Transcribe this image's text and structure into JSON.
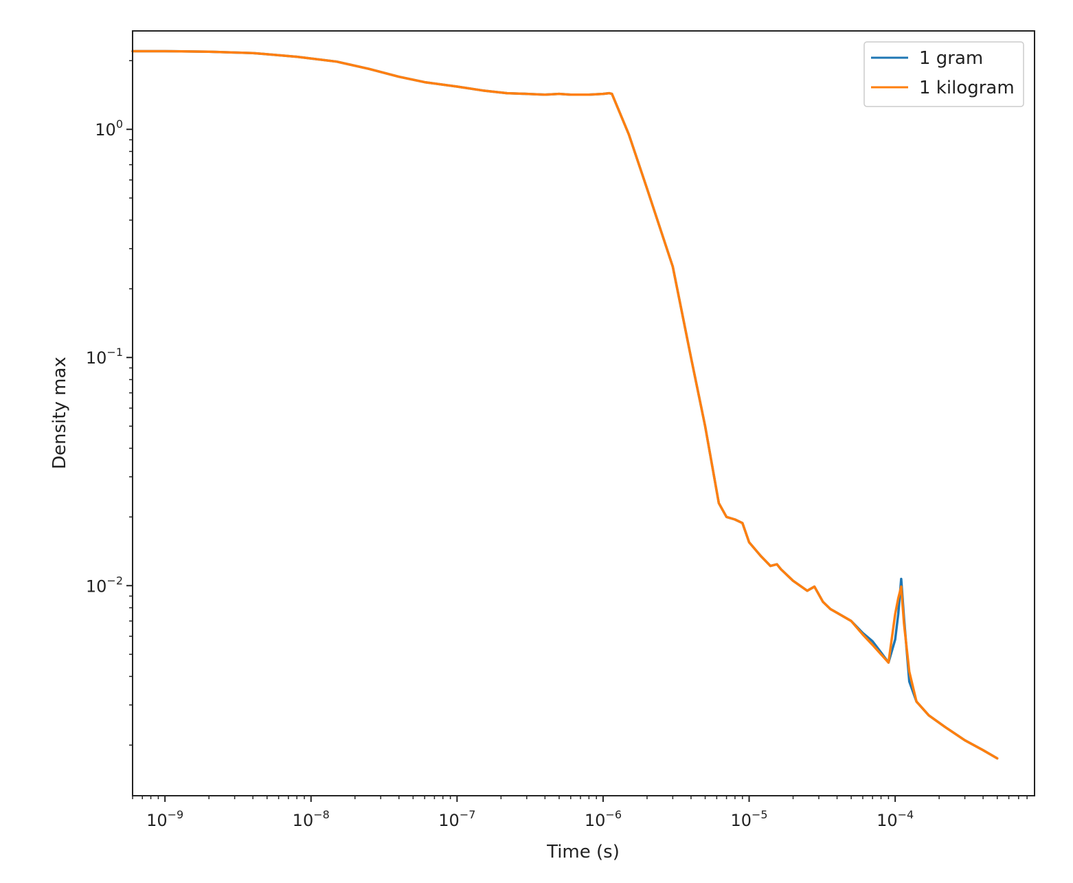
{
  "chart_data": {
    "type": "line",
    "title": "",
    "xlabel": "Time (s)",
    "ylabel": "Density max",
    "xscale": "log",
    "yscale": "log",
    "xlim": [
      6e-10,
      0.0009
    ],
    "ylim": [
      0.0012,
      2.7
    ],
    "grid": false,
    "legend_position": "top-right",
    "x_ticks": [
      {
        "value": 1e-09,
        "base": "10",
        "exp": "−9"
      },
      {
        "value": 1e-08,
        "base": "10",
        "exp": "−8"
      },
      {
        "value": 1e-07,
        "base": "10",
        "exp": "−7"
      },
      {
        "value": 1e-06,
        "base": "10",
        "exp": "−6"
      },
      {
        "value": 1e-05,
        "base": "10",
        "exp": "−5"
      },
      {
        "value": 0.0001,
        "base": "10",
        "exp": "−4"
      }
    ],
    "y_ticks": [
      {
        "value": 1,
        "base": "10",
        "exp": "0"
      },
      {
        "value": 0.1,
        "base": "10",
        "exp": "−1"
      },
      {
        "value": 0.01,
        "base": "10",
        "exp": "−2"
      }
    ],
    "series": [
      {
        "name": "1 gram",
        "color": "#1f77b4",
        "x": [
          6e-10,
          1e-09,
          2e-09,
          4e-09,
          8e-09,
          1.5e-08,
          2.5e-08,
          4e-08,
          6e-08,
          1e-07,
          1.5e-07,
          2.2e-07,
          3e-07,
          4e-07,
          5e-07,
          6e-07,
          8e-07,
          1e-06,
          1.1e-06,
          1.15e-06,
          1.5e-06,
          2e-06,
          3e-06,
          4e-06,
          5e-06,
          6.2e-06,
          7e-06,
          8e-06,
          9e-06,
          1e-05,
          1.2e-05,
          1.4e-05,
          1.55e-05,
          1.65e-05,
          2e-05,
          2.5e-05,
          2.8e-05,
          3.2e-05,
          3.6e-05,
          4e-05,
          5e-05,
          6e-05,
          7e-05,
          8e-05,
          9e-05,
          0.0001,
          0.000105,
          0.00011,
          0.000115,
          0.000125,
          0.00014,
          0.00017,
          0.00022,
          0.0003,
          0.0004,
          0.0005
        ],
        "y": [
          2.2,
          2.2,
          2.19,
          2.16,
          2.08,
          1.98,
          1.84,
          1.7,
          1.61,
          1.54,
          1.48,
          1.44,
          1.43,
          1.42,
          1.43,
          1.42,
          1.42,
          1.43,
          1.44,
          1.43,
          0.95,
          0.55,
          0.25,
          0.1,
          0.05,
          0.023,
          0.02,
          0.0195,
          0.0188,
          0.0155,
          0.0135,
          0.0122,
          0.0124,
          0.0118,
          0.0105,
          0.0095,
          0.0099,
          0.0085,
          0.0079,
          0.0076,
          0.007,
          0.0062,
          0.0057,
          0.0051,
          0.0046,
          0.0058,
          0.0075,
          0.0107,
          0.0072,
          0.0038,
          0.0031,
          0.0027,
          0.0024,
          0.0021,
          0.0019,
          0.00175
        ]
      },
      {
        "name": "1 kilogram",
        "color": "#ff7f0e",
        "x": [
          6e-10,
          1e-09,
          2e-09,
          4e-09,
          8e-09,
          1.5e-08,
          2.5e-08,
          4e-08,
          6e-08,
          1e-07,
          1.5e-07,
          2.2e-07,
          3e-07,
          4e-07,
          5e-07,
          6e-07,
          8e-07,
          1e-06,
          1.1e-06,
          1.15e-06,
          1.5e-06,
          2e-06,
          3e-06,
          4e-06,
          5e-06,
          6.2e-06,
          7e-06,
          8e-06,
          9e-06,
          1e-05,
          1.2e-05,
          1.4e-05,
          1.55e-05,
          1.65e-05,
          2e-05,
          2.5e-05,
          2.8e-05,
          3.2e-05,
          3.6e-05,
          4e-05,
          5e-05,
          6e-05,
          7e-05,
          8e-05,
          9e-05,
          0.0001,
          0.000105,
          0.00011,
          0.000115,
          0.000125,
          0.00014,
          0.00017,
          0.00022,
          0.0003,
          0.0004,
          0.0005
        ],
        "y": [
          2.2,
          2.2,
          2.19,
          2.16,
          2.08,
          1.98,
          1.84,
          1.7,
          1.61,
          1.54,
          1.48,
          1.44,
          1.43,
          1.42,
          1.43,
          1.42,
          1.42,
          1.43,
          1.44,
          1.43,
          0.95,
          0.55,
          0.25,
          0.1,
          0.05,
          0.023,
          0.02,
          0.0195,
          0.0188,
          0.0155,
          0.0135,
          0.0122,
          0.0124,
          0.0118,
          0.0105,
          0.0095,
          0.0099,
          0.0085,
          0.0079,
          0.0076,
          0.007,
          0.0061,
          0.0055,
          0.005,
          0.0046,
          0.0075,
          0.0088,
          0.0099,
          0.0068,
          0.0042,
          0.0031,
          0.0027,
          0.0024,
          0.0021,
          0.0019,
          0.00175
        ]
      }
    ]
  }
}
